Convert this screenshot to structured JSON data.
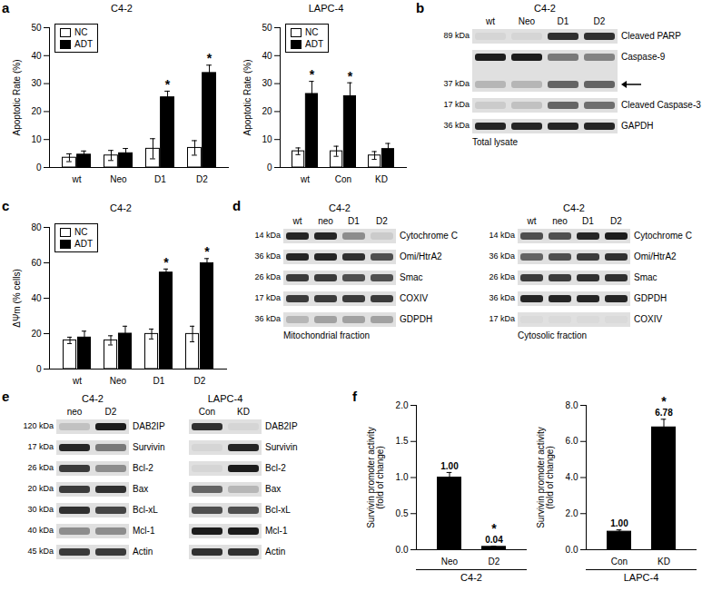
{
  "panel_letters": [
    "a",
    "b",
    "c",
    "d",
    "e",
    "f"
  ],
  "chart_data": [
    {
      "type": "bar",
      "title": "C4-2",
      "ylabel": "Apoptotic Rate (%)",
      "categories": [
        "wt",
        "Neo",
        "D1",
        "D2"
      ],
      "series": [
        {
          "name": "NC",
          "color": "#ffffff",
          "values": [
            3.5,
            4.3,
            6.7,
            7.0
          ],
          "errors": [
            1.4,
            1.8,
            3.6,
            2.6
          ]
        },
        {
          "name": "ADT",
          "color": "#000000",
          "values": [
            4.6,
            5.1,
            25.1,
            33.8
          ],
          "errors": [
            1.3,
            1.7,
            2.2,
            2.8
          ]
        }
      ],
      "ylim": [
        0,
        50
      ],
      "yticks": [
        0,
        10,
        20,
        30,
        40,
        50
      ],
      "legend": "top-left",
      "annotations": [
        {
          "text": "*",
          "category": "D1",
          "series": "ADT"
        },
        {
          "text": "*",
          "category": "D2",
          "series": "ADT"
        }
      ]
    },
    {
      "type": "bar",
      "title": "LAPC-4",
      "ylabel": "Apoptotic Rate (%)",
      "categories": [
        "wt",
        "Con",
        "KD"
      ],
      "series": [
        {
          "name": "NC",
          "color": "#ffffff",
          "values": [
            5.8,
            5.8,
            4.3
          ],
          "errors": [
            1.2,
            1.8,
            1.4
          ]
        },
        {
          "name": "ADT",
          "color": "#000000",
          "values": [
            26.3,
            25.5,
            6.6
          ],
          "errors": [
            4.5,
            4.8,
            2.0
          ]
        }
      ],
      "ylim": [
        0,
        50
      ],
      "yticks": [
        0,
        10,
        20,
        30,
        40,
        50
      ],
      "legend": "top-left",
      "annotations": [
        {
          "text": "*",
          "category": "wt",
          "series": "ADT"
        },
        {
          "text": "*",
          "category": "Con",
          "series": "ADT"
        }
      ]
    },
    {
      "type": "bar",
      "title": "C4-2",
      "ylabel": "ΔΨm (% cells)",
      "categories": [
        "wt",
        "Neo",
        "D1",
        "D2"
      ],
      "series": [
        {
          "name": "NC",
          "color": "#ffffff",
          "values": [
            16.2,
            16.2,
            19.8,
            19.8
          ],
          "errors": [
            1.8,
            2.6,
            2.8,
            4.4
          ]
        },
        {
          "name": "ADT",
          "color": "#000000",
          "values": [
            17.8,
            20.0,
            54.5,
            59.8
          ],
          "errors": [
            3.6,
            4.2,
            2.0,
            2.6
          ]
        }
      ],
      "ylim": [
        0,
        80
      ],
      "yticks": [
        0,
        20,
        40,
        60,
        80
      ],
      "legend": "top-left",
      "annotations": [
        {
          "text": "*",
          "category": "D1",
          "series": "ADT"
        },
        {
          "text": "*",
          "category": "D2",
          "series": "ADT"
        }
      ]
    },
    {
      "type": "bar",
      "xlabel": "C4-2",
      "ylabel": "Survivin promoter activity\n(fold of change)",
      "categories": [
        "Neo",
        "D2"
      ],
      "series": [
        {
          "color": "#000000",
          "values": [
            1.0,
            0.04
          ],
          "errors": [
            0.07,
            0.01
          ],
          "value_labels": [
            "1.00",
            "0.04"
          ]
        }
      ],
      "ylim": [
        0,
        2
      ],
      "yticks": [
        {
          "value": 0,
          "label": "0.0"
        },
        0.5,
        {
          "value": 1,
          "label": "1.0"
        },
        1.5,
        {
          "value": 2,
          "label": "2.0"
        }
      ],
      "data_labels": true,
      "annotations": [
        {
          "text": "*",
          "category": "D2"
        }
      ]
    },
    {
      "type": "bar",
      "xlabel": "LAPC-4",
      "ylabel": "Survivin promoter activity\n(fold of change)",
      "categories": [
        "Con",
        "KD"
      ],
      "series": [
        {
          "color": "#000000",
          "values": [
            1.0,
            6.78
          ],
          "errors": [
            0.1,
            0.45
          ],
          "value_labels": [
            "1.00",
            "6.78"
          ]
        }
      ],
      "ylim": [
        0,
        8
      ],
      "yticks": [
        {
          "value": 0,
          "label": "0.0"
        },
        {
          "value": 2,
          "label": "2.0"
        },
        {
          "value": 4,
          "label": "4.0"
        },
        {
          "value": 6,
          "label": "6.0"
        },
        {
          "value": 8,
          "label": "8.0"
        }
      ],
      "data_labels": true,
      "annotations": [
        {
          "text": "*",
          "category": "KD"
        }
      ]
    }
  ],
  "blots": [
    {
      "title": "C4-2",
      "lanes": [
        "wt",
        "Neo",
        "D1",
        "D2"
      ],
      "footer": "Total lysate",
      "rows": [
        {
          "mw": "89 kDa",
          "label": "Cleaved PARP",
          "bands": [
            0.05,
            0.05,
            0.85,
            0.85
          ]
        },
        {
          "mw": "37 kDa",
          "mw_position": "bottom",
          "label": "Caspase-9",
          "bands": [
            0.95,
            0.95,
            0.5,
            0.45
          ],
          "arrow_bands": [
            0.2,
            0.2,
            0.6,
            0.6
          ]
        },
        {
          "mw": "17 kDa",
          "label": "Cleaved Caspase-3",
          "bands": [
            0.1,
            0.15,
            0.6,
            0.55
          ]
        },
        {
          "mw": "36 kDa",
          "label": "GAPDH",
          "bands": [
            0.9,
            0.9,
            0.9,
            0.9
          ]
        }
      ]
    },
    {
      "title": "C4-2",
      "lanes": [
        "wt",
        "neo",
        "D1",
        "D2"
      ],
      "footer": "Mitochondrial fraction",
      "rows": [
        {
          "mw": "14 kDa",
          "label": "Cytochrome C",
          "bands": [
            0.9,
            0.9,
            0.4,
            0.1
          ]
        },
        {
          "mw": "36 kDa",
          "label": "Omi/HtrA2",
          "bands": [
            0.9,
            0.9,
            0.85,
            0.7
          ]
        },
        {
          "mw": "26 kDa",
          "label": "Smac",
          "bands": [
            0.8,
            0.8,
            0.7,
            0.7
          ]
        },
        {
          "mw": "17 kDa",
          "label": "COXIV",
          "bands": [
            0.8,
            0.8,
            0.8,
            0.8
          ]
        },
        {
          "mw": "36 kDa",
          "label": "GDPDH",
          "bands": [
            0.2,
            0.3,
            0.3,
            0.3
          ]
        }
      ]
    },
    {
      "title": "C4-2",
      "lanes": [
        "wt",
        "neo",
        "D1",
        "D2"
      ],
      "footer": "Cytosolic fraction",
      "rows": [
        {
          "mw": "14 kDa",
          "label": "Cytochrome C",
          "bands": [
            0.7,
            0.7,
            0.9,
            0.95
          ]
        },
        {
          "mw": "36 kDa",
          "label": "Omi/HtrA2",
          "bands": [
            0.6,
            0.7,
            0.8,
            0.85
          ]
        },
        {
          "mw": "26 kDa",
          "label": "Smac",
          "bands": [
            0.8,
            0.8,
            0.85,
            0.85
          ]
        },
        {
          "mw": "36 kDa",
          "label": "GDPDH",
          "bands": [
            0.9,
            0.9,
            0.9,
            0.9
          ]
        },
        {
          "mw": "17 kDa",
          "label": "COXIV",
          "bands": [
            0.03,
            0.03,
            0.03,
            0.03
          ]
        }
      ]
    },
    {
      "title": "C4-2",
      "lanes": [
        "neo",
        "D2"
      ],
      "rows": [
        {
          "mw": "120 kDa",
          "label": "DAB2IP",
          "bands": [
            0.15,
            0.95
          ]
        },
        {
          "mw": "17 kDa",
          "label": "Survivin",
          "bands": [
            0.9,
            0.5
          ]
        },
        {
          "mw": "26 kDa",
          "label": "Bcl-2",
          "bands": [
            0.8,
            0.4
          ]
        },
        {
          "mw": "20 kDa",
          "label": "Bax",
          "bands": [
            0.8,
            0.85
          ]
        },
        {
          "mw": "30 kDa",
          "label": "Bcl-xL",
          "bands": [
            0.85,
            0.75
          ]
        },
        {
          "mw": "40 kDa",
          "label": "Mcl-1",
          "bands": [
            0.4,
            0.4
          ]
        },
        {
          "mw": "45 kDa",
          "label": "Actin",
          "bands": [
            0.8,
            0.8
          ]
        }
      ]
    },
    {
      "title": "LAPC-4",
      "lanes": [
        "Con",
        "KD"
      ],
      "rows": [
        {
          "label": "DAB2IP",
          "bands": [
            0.85,
            0.05
          ]
        },
        {
          "label": "Survivin",
          "bands": [
            0.05,
            0.9
          ]
        },
        {
          "label": "Bcl-2",
          "bands": [
            0.05,
            0.95
          ]
        },
        {
          "label": "Bax",
          "bands": [
            0.6,
            0.2
          ]
        },
        {
          "label": "Bcl-xL",
          "bands": [
            0.7,
            0.7
          ]
        },
        {
          "label": "Mcl-1",
          "bands": [
            0.95,
            0.95
          ]
        },
        {
          "label": "Actin",
          "bands": [
            0.85,
            0.85
          ]
        }
      ]
    }
  ]
}
